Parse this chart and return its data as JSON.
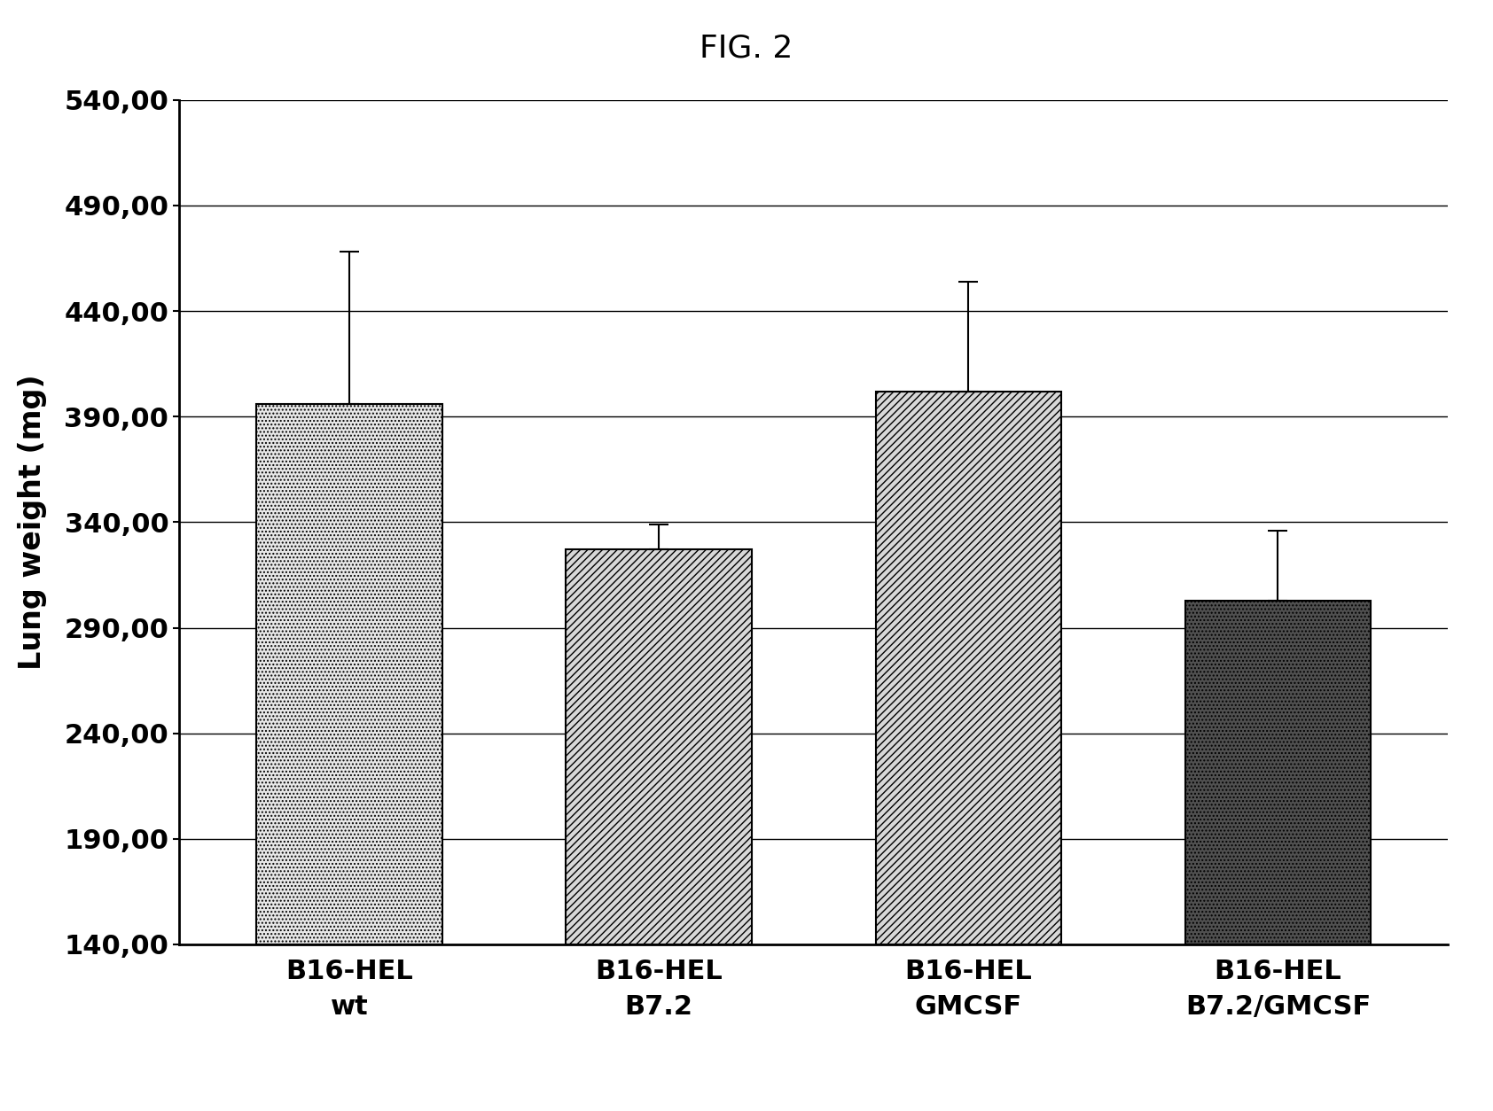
{
  "title": "FIG. 2",
  "ylabel": "Lung weight (mg)",
  "categories": [
    "B16-HEL\nwt",
    "B16-HEL\nB7.2",
    "B16-HEL\nGMCSF",
    "B16-HEL\nB7.2/GMCSF"
  ],
  "values": [
    396,
    327,
    402,
    303
  ],
  "errors": [
    72,
    12,
    52,
    33
  ],
  "ylim": [
    140,
    540
  ],
  "yticks": [
    140,
    190,
    240,
    290,
    340,
    390,
    440,
    490,
    540
  ],
  "ytick_labels": [
    "140,00",
    "190,00",
    "240,00",
    "290,00",
    "340,00",
    "390,00",
    "440,00",
    "490,00",
    "540,00"
  ],
  "bar_hatches": [
    "....",
    "////",
    "////",
    "...."
  ],
  "bar_facecolors": [
    "#e8e8e8",
    "#d8d8d8",
    "#d8d8d8",
    "#505050"
  ],
  "bar_edgecolors": [
    "#000000",
    "#000000",
    "#000000",
    "#000000"
  ],
  "background_color": "#ffffff",
  "title_fontsize": 26,
  "axis_fontsize": 24,
  "tick_fontsize": 22,
  "xlabel_fontsize": 22,
  "bar_width": 0.6,
  "figsize": [
    16.84,
    12.54
  ],
  "dpi": 100
}
